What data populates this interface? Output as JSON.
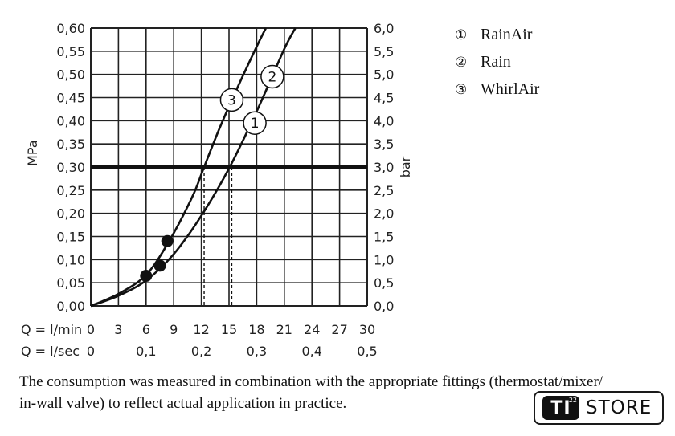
{
  "chart_data": {
    "type": "line",
    "ylabel_left": "MPa",
    "ylabel_right": "bar",
    "y_ticks_left": [
      "0,60",
      "0,55",
      "0,50",
      "0,45",
      "0,40",
      "0,35",
      "0,30",
      "0,25",
      "0,20",
      "0,15",
      "0,10",
      "0,05",
      "0,00"
    ],
    "y_ticks_right": [
      "6,0",
      "5,5",
      "5,0",
      "4,5",
      "4,0",
      "3,5",
      "3,0",
      "2,5",
      "2,0",
      "1,5",
      "1,0",
      "0,5",
      "0,0"
    ],
    "x_row1_label": "Q = l/min",
    "x_row1_ticks": [
      "0",
      "3",
      "6",
      "9",
      "12",
      "15",
      "18",
      "21",
      "24",
      "27",
      "30"
    ],
    "x_row2_label": "Q = l/sec",
    "x_row2_ticks": [
      "0",
      "0,1",
      "0,2",
      "0,3",
      "0,4",
      "0,5"
    ],
    "xlim": [
      0,
      30
    ],
    "ylim": [
      0,
      0.6
    ],
    "reference_line_y": 0.3,
    "series": [
      {
        "marker": "1",
        "name": "RainAir",
        "x": [
          0,
          3,
          6,
          9,
          12,
          15,
          18,
          21,
          22.2
        ],
        "y": [
          0,
          0.022,
          0.055,
          0.112,
          0.195,
          0.297,
          0.42,
          0.555,
          0.6
        ]
      },
      {
        "marker": "2",
        "name": "Rain",
        "x": [
          0,
          3,
          6,
          9,
          12,
          15,
          18,
          21,
          22.2
        ],
        "y": [
          0,
          0.022,
          0.055,
          0.112,
          0.195,
          0.297,
          0.42,
          0.555,
          0.6
        ]
      },
      {
        "marker": "3",
        "name": "WhirlAir",
        "x": [
          0,
          3,
          6,
          8.5,
          11,
          12.3,
          14,
          16,
          18,
          19
        ],
        "y": [
          0,
          0.026,
          0.067,
          0.14,
          0.235,
          0.3,
          0.385,
          0.475,
          0.56,
          0.6
        ]
      }
    ],
    "dashed_drops": [
      12.3,
      15.3
    ],
    "dots": [
      {
        "x": 6.0,
        "y": 0.065
      },
      {
        "x": 7.5,
        "y": 0.087
      },
      {
        "x": 8.3,
        "y": 0.14
      }
    ],
    "curve_labels": [
      {
        "marker": "1",
        "x": 17.8,
        "y": 0.395
      },
      {
        "marker": "2",
        "x": 19.7,
        "y": 0.495
      },
      {
        "marker": "3",
        "x": 15.3,
        "y": 0.445
      }
    ],
    "legend": [
      {
        "marker": "①",
        "name": "RainAir"
      },
      {
        "marker": "②",
        "name": "Rain"
      },
      {
        "marker": "③",
        "name": "WhirlAir"
      }
    ],
    "legend_position": "top-right",
    "grid": true
  },
  "caption": {
    "line1": "The consumption was measured in combination with the appropriate fittings (thermostat/mixer/",
    "line2": "in-wall valve) to reflect actual application in practice."
  },
  "badge": {
    "ti": "TI",
    "sup": "22",
    "store": "STORE"
  }
}
